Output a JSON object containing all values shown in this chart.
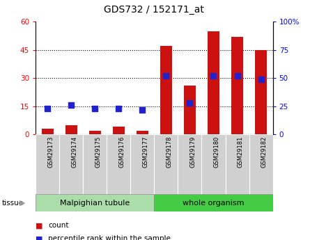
{
  "title": "GDS732 / 152171_at",
  "samples": [
    "GSM29173",
    "GSM29174",
    "GSM29175",
    "GSM29176",
    "GSM29177",
    "GSM29178",
    "GSM29179",
    "GSM29180",
    "GSM29181",
    "GSM29182"
  ],
  "count_values": [
    3,
    5,
    2,
    4,
    2,
    47,
    26,
    55,
    52,
    45
  ],
  "percentile_values": [
    23,
    26,
    23,
    23,
    22,
    52,
    28,
    52,
    52,
    49
  ],
  "tissue_groups": [
    {
      "label": "Malpighian tubule",
      "start": 0,
      "end": 5,
      "color": "#aaddaa"
    },
    {
      "label": "whole organism",
      "start": 5,
      "end": 10,
      "color": "#44cc44"
    }
  ],
  "ylim_left": [
    0,
    60
  ],
  "ylim_right": [
    0,
    100
  ],
  "yticks_left": [
    0,
    15,
    30,
    45,
    60
  ],
  "yticks_right": [
    0,
    25,
    50,
    75,
    100
  ],
  "ytick_labels_right": [
    "0",
    "25",
    "50",
    "75",
    "100%"
  ],
  "bar_color": "#cc1111",
  "dot_color": "#2222cc",
  "bar_width": 0.5,
  "dot_size": 28,
  "gridline_vals": [
    15,
    30,
    45
  ]
}
